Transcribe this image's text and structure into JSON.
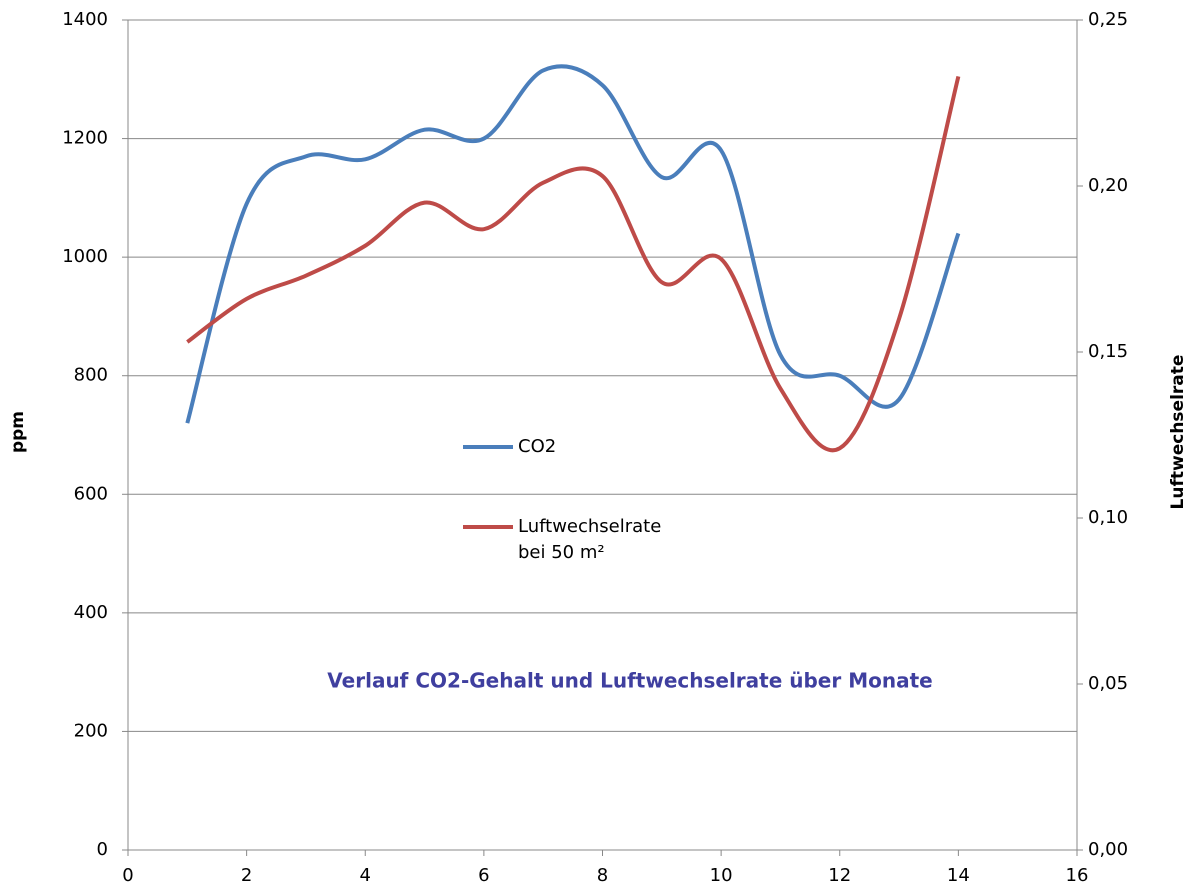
{
  "chart_data": {
    "type": "line",
    "title": "Verlauf CO2-Gehalt und Luftwechselrate über Monate",
    "ylabel": "ppm",
    "y2label": "Luftwechselrate",
    "x": [
      1,
      2,
      3,
      4,
      5,
      6,
      7,
      8,
      9,
      10,
      11,
      12,
      13,
      14
    ],
    "series": [
      {
        "name": "CO2",
        "color": "#4a7ebb",
        "values": [
          720,
          1090,
          1170,
          1165,
          1215,
          1200,
          1315,
          1290,
          1135,
          1180,
          835,
          800,
          760,
          1040
        ]
      },
      {
        "name": "Luftwechselrate bei 50 m²",
        "color": "#be4b48",
        "axis": "y2",
        "values": [
          0.153,
          0.166,
          0.173,
          0.182,
          0.195,
          0.187,
          0.201,
          0.203,
          0.171,
          0.178,
          0.139,
          0.121,
          0.16,
          0.233
        ]
      }
    ],
    "xlim": [
      0,
      16
    ],
    "xticks": [
      0,
      2,
      4,
      6,
      8,
      10,
      12,
      14,
      16
    ],
    "ylim": [
      0,
      1400
    ],
    "yticks": [
      0,
      200,
      400,
      600,
      800,
      1000,
      1200,
      1400
    ],
    "y2lim": [
      0,
      0.25
    ],
    "y2ticks": [
      {
        "value": 0,
        "label": "0,00"
      },
      {
        "value": 0.05,
        "label": "0,05"
      },
      {
        "value": 0.1,
        "label": "0,10"
      },
      {
        "value": 0.15,
        "label": "0,15"
      },
      {
        "value": 0.2,
        "label": "0,20"
      },
      {
        "value": 0.25,
        "label": "0,25"
      }
    ],
    "grid": true
  }
}
